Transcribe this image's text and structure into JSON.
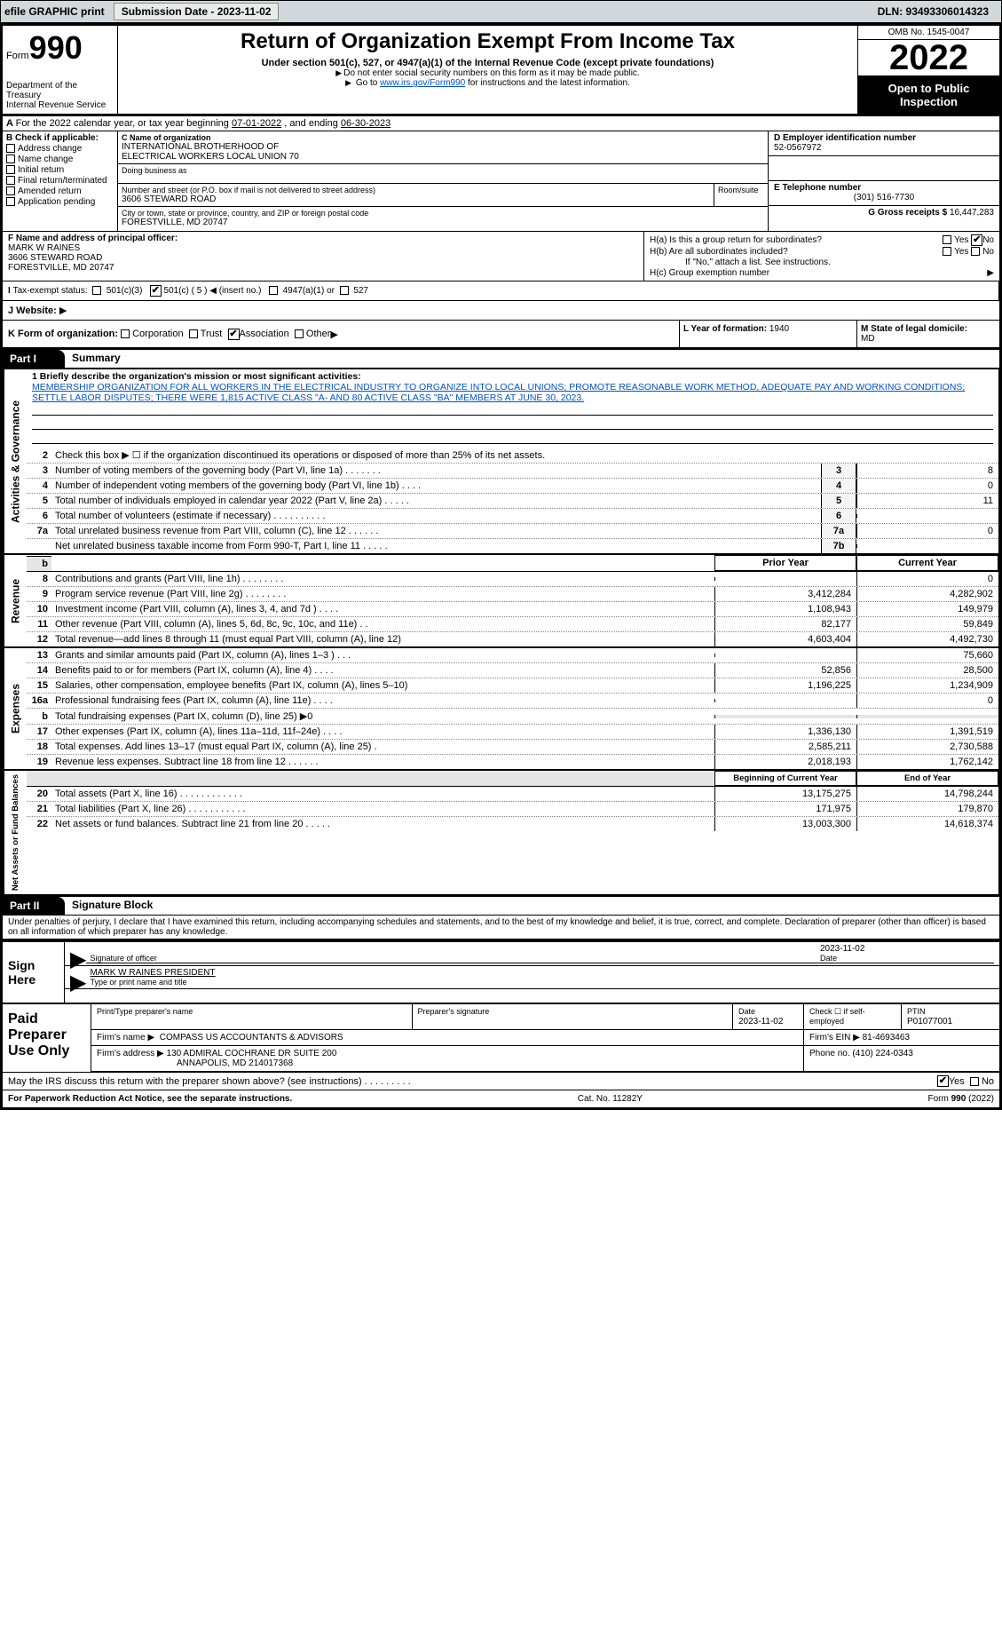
{
  "topbar": {
    "efile_label": "efile GRAPHIC print",
    "submission_label": "Submission Date - 2023-11-02",
    "dln_label": "DLN: 93493306014323"
  },
  "header": {
    "form_label": "Form",
    "form_no": "990",
    "dept": "Department of the Treasury",
    "irs": "Internal Revenue Service",
    "title": "Return of Organization Exempt From Income Tax",
    "subtitle": "Under section 501(c), 527, or 4947(a)(1) of the Internal Revenue Code (except private foundations)",
    "note1": "Do not enter social security numbers on this form as it may be made public.",
    "note2_a": "Go to ",
    "note2_link": "www.irs.gov/Form990",
    "note2_b": " for instructions and the latest information.",
    "omb": "OMB No. 1545-0047",
    "year": "2022",
    "inspection": "Open to Public Inspection"
  },
  "A": {
    "text_a": "For the 2022 calendar year, or tax year beginning ",
    "begin": "07-01-2022",
    "mid": " , and ending ",
    "end": "06-30-2023"
  },
  "B": {
    "label": "B Check if applicable:",
    "opts": [
      "Address change",
      "Name change",
      "Initial return",
      "Final return/terminated",
      "Amended return",
      "Application pending"
    ]
  },
  "C": {
    "name_label": "C Name of organization",
    "name1": "INTERNATIONAL BROTHERHOOD OF",
    "name2": "ELECTRICAL WORKERS LOCAL UNION 70",
    "dba_label": "Doing business as",
    "street_label": "Number and street (or P.O. box if mail is not delivered to street address)",
    "room_label": "Room/suite",
    "street": "3606 STEWARD ROAD",
    "city_label": "City or town, state or province, country, and ZIP or foreign postal code",
    "city": "FORESTVILLE, MD  20747"
  },
  "D": {
    "label": "D Employer identification number",
    "value": "52-0567972"
  },
  "E": {
    "label": "E Telephone number",
    "value": "(301) 516-7730"
  },
  "G": {
    "label": "G Gross receipts $",
    "value": "16,447,283"
  },
  "F": {
    "label": "F  Name and address of principal officer:",
    "name": "MARK W RAINES",
    "addr1": "3606 STEWARD ROAD",
    "addr2": "FORESTVILLE, MD  20747"
  },
  "H": {
    "a_label": "H(a)  Is this a group return for subordinates?",
    "b_label": "H(b)  Are all subordinates included?",
    "b_note": "If \"No,\" attach a list. See instructions.",
    "c_label": "H(c)  Group exemption number",
    "yes": "Yes",
    "no": "No"
  },
  "I": {
    "label": "Tax-exempt status:",
    "o1": "501(c)(3)",
    "o2": "501(c) ( 5 )",
    "o2n": "(insert no.)",
    "o3": "4947(a)(1) or",
    "o4": "527"
  },
  "J": {
    "label": "J  Website:",
    "arrow": "▶"
  },
  "K": {
    "label": "K Form of organization:",
    "opts": [
      "Corporation",
      "Trust",
      "Association",
      "Other"
    ]
  },
  "L": {
    "label": "L Year of formation: ",
    "value": "1940"
  },
  "M": {
    "label": "M State of legal domicile:",
    "value": "MD"
  },
  "PartI": {
    "tag": "Part I",
    "title": "Summary",
    "mission_label": "1  Briefly describe the organization's mission or most significant activities:",
    "mission": "MEMBERSHIP ORGANIZATION FOR ALL WORKERS IN THE ELECTRICAL INDUSTRY TO ORGANIZE INTO LOCAL UNIONS; PROMOTE REASONABLE WORK METHOD, ADEQUATE PAY AND WORKING CONDITIONS; SETTLE LABOR DISPUTES; THERE WERE 1,815 ACTIVE CLASS \"A- AND 80 ACTIVE CLASS \"BA\" MEMBERS AT JUNE 30, 2023."
  },
  "sections": {
    "ag": {
      "label": "Activities & Governance",
      "l2": "Check this box ▶ ☐  if the organization discontinued its operations or disposed of more than 25% of its net assets.",
      "lines": [
        {
          "n": "3",
          "t": "Number of voting members of the governing body (Part VI, line 1a)   .    .    .    .    .    .    .",
          "box": "3",
          "v": "8"
        },
        {
          "n": "4",
          "t": "Number of independent voting members of the governing body (Part VI, line 1b)  .    .    .    .",
          "box": "4",
          "v": "0"
        },
        {
          "n": "5",
          "t": "Total number of individuals employed in calendar year 2022 (Part V, line 2a)  .    .    .    .    .",
          "box": "5",
          "v": "11"
        },
        {
          "n": "6",
          "t": "Total number of volunteers (estimate if necessary)    .     .     .     .     .     .     .     .     .     .",
          "box": "6",
          "v": ""
        },
        {
          "n": "7a",
          "t": "Total unrelated business revenue from Part VIII, column (C), line 12   .     .     .     .     .     .",
          "box": "7a",
          "v": "0"
        },
        {
          "n": "",
          "t": "Net unrelated business taxable income from Form 990-T, Part I, line 11    .     .     .     .     .",
          "box": "7b",
          "v": ""
        }
      ]
    },
    "rev": {
      "label": "Revenue",
      "hdr_prior": "Prior Year",
      "hdr_curr": "Current Year",
      "lines": [
        {
          "n": "8",
          "t": "Contributions and grants (Part VIII, line 1h)   .     .     .     .     .     .     .     .",
          "p": "",
          "c": "0"
        },
        {
          "n": "9",
          "t": "Program service revenue (Part VIII, line 2g)   .     .     .     .     .     .     .     .",
          "p": "3,412,284",
          "c": "4,282,902"
        },
        {
          "n": "10",
          "t": "Investment income (Part VIII, column (A), lines 3, 4, and 7d )   .     .     .     .",
          "p": "1,108,943",
          "c": "149,979"
        },
        {
          "n": "11",
          "t": "Other revenue (Part VIII, column (A), lines 5, 6d, 8c, 9c, 10c, and 11e)    .    .",
          "p": "82,177",
          "c": "59,849"
        },
        {
          "n": "12",
          "t": "Total revenue—add lines 8 through 11 (must equal Part VIII, column (A), line 12)",
          "p": "4,603,404",
          "c": "4,492,730"
        }
      ]
    },
    "exp": {
      "label": "Expenses",
      "lines": [
        {
          "n": "13",
          "t": "Grants and similar amounts paid (Part IX, column (A), lines 1–3 )   .     .     .",
          "p": "",
          "c": "75,660"
        },
        {
          "n": "14",
          "t": "Benefits paid to or for members (Part IX, column (A), line 4)   .     .     .     .",
          "p": "52,856",
          "c": "28,500"
        },
        {
          "n": "15",
          "t": "Salaries, other compensation, employee benefits (Part IX, column (A), lines 5–10)",
          "p": "1,196,225",
          "c": "1,234,909"
        },
        {
          "n": "16a",
          "t": "Professional fundraising fees (Part IX, column (A), line 11e)    .     .     .     .",
          "p": "",
          "c": "0"
        },
        {
          "n": "b",
          "t": "Total fundraising expenses (Part IX, column (D), line 25) ▶0",
          "p": "SHADE",
          "c": "SHADE"
        },
        {
          "n": "17",
          "t": "Other expenses (Part IX, column (A), lines 11a–11d, 11f–24e)   .     .     .     .",
          "p": "1,336,130",
          "c": "1,391,519"
        },
        {
          "n": "18",
          "t": "Total expenses. Add lines 13–17 (must equal Part IX, column (A), line 25)   .",
          "p": "2,585,211",
          "c": "2,730,588"
        },
        {
          "n": "19",
          "t": "Revenue less expenses. Subtract line 18 from line 12   .     .     .     .     .     .",
          "p": "2,018,193",
          "c": "1,762,142"
        }
      ]
    },
    "na": {
      "label": "Net Assets or Fund Balances",
      "hdr_prior": "Beginning of Current Year",
      "hdr_curr": "End of Year",
      "lines": [
        {
          "n": "20",
          "t": "Total assets (Part X, line 16)   .     .     .     .     .     .     .     .     .     .     .     .",
          "p": "13,175,275",
          "c": "14,798,244"
        },
        {
          "n": "21",
          "t": "Total liabilities (Part X, line 26)   .     .     .     .     .     .     .     .     .     .     .",
          "p": "171,975",
          "c": "179,870"
        },
        {
          "n": "22",
          "t": "Net assets or fund balances. Subtract line 21 from line 20   .     .     .     .     .",
          "p": "13,003,300",
          "c": "14,618,374"
        }
      ]
    }
  },
  "PartII": {
    "tag": "Part II",
    "title": "Signature Block",
    "penalty": "Under penalties of perjury, I declare that I have examined this return, including accompanying schedules and statements, and to the best of my knowledge and belief, it is true, correct, and complete. Declaration of preparer (other than officer) is based on all information of which preparer has any knowledge."
  },
  "sign": {
    "here": "Sign Here",
    "sig_label": "Signature of officer",
    "date_label": "Date",
    "date": "2023-11-02",
    "name": "MARK W RAINES PRESIDENT",
    "name_label": "Type or print name and title"
  },
  "paid": {
    "label": "Paid Preparer Use Only",
    "prep_name_label": "Print/Type preparer's name",
    "prep_sig_label": "Preparer's signature",
    "date_label": "Date",
    "date": "2023-11-02",
    "check_label": "Check ☐ if self-employed",
    "ptin_label": "PTIN",
    "ptin": "P01077001",
    "firm_name_label": "Firm's name   ▶",
    "firm_name": "COMPASS US ACCOUNTANTS & ADVISORS",
    "firm_ein_label": "Firm's EIN ▶",
    "firm_ein": "81-4693463",
    "firm_addr_label": "Firm's address ▶",
    "firm_addr1": "130 ADMIRAL COCHRANE DR SUITE 200",
    "firm_addr2": "ANNAPOLIS, MD  214017368",
    "phone_label": "Phone no.",
    "phone": "(410) 224-0343"
  },
  "discuss": {
    "text": "May the IRS discuss this return with the preparer shown above? (see instructions)    .     .     .     .     .     .     .     .     .",
    "yes": "Yes",
    "no": "No"
  },
  "footer": {
    "left": "For Paperwork Reduction Act Notice, see the separate instructions.",
    "mid": "Cat. No. 11282Y",
    "right": "Form 990 (2022)"
  },
  "colors": {
    "topbar_bg": "#d0d8dc",
    "link": "#0052cc",
    "shade": "#e6e6e6"
  }
}
